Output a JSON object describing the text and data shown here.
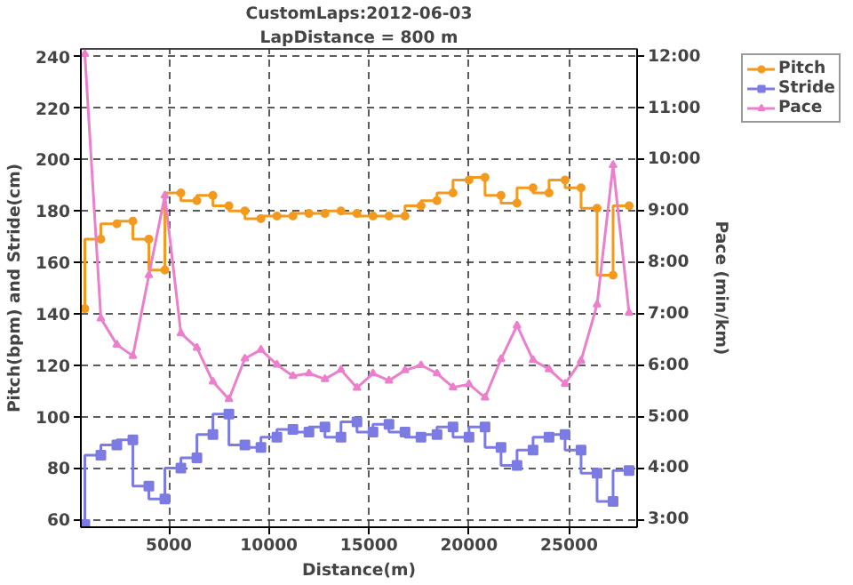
{
  "chart_data": {
    "type": "step",
    "title": "CustomLaps:2012-06-03",
    "subtitle": "LapDistance = 800 m",
    "xlabel": "Distance(m)",
    "ylabel": "Pitch(bpm) and Stride(cm)",
    "y2label": "Pace (min/km)",
    "x": [
      800,
      1600,
      2400,
      3200,
      4000,
      4800,
      5600,
      6400,
      7200,
      8000,
      8800,
      9600,
      10400,
      11200,
      12000,
      12800,
      13600,
      14400,
      15200,
      16000,
      16800,
      17600,
      18400,
      19200,
      20000,
      20800,
      21600,
      22400,
      23200,
      24000,
      24800,
      25600,
      26400,
      27200,
      28000
    ],
    "series": [
      {
        "name": "Pitch",
        "color": "#f39a1e",
        "marker": "circle",
        "values": [
          142,
          169,
          175,
          176,
          169,
          157,
          187,
          184,
          186,
          182,
          180,
          177,
          178,
          178,
          179,
          179,
          180,
          179,
          178,
          178,
          178,
          182,
          184,
          187,
          192,
          193,
          186,
          183,
          189,
          187,
          192,
          189,
          181,
          155,
          182
        ]
      },
      {
        "name": "Stride",
        "color": "#7b7be3",
        "marker": "square",
        "values": [
          58,
          85,
          89,
          91,
          73,
          68,
          80,
          84,
          93,
          101,
          89,
          88,
          92,
          95,
          94,
          96,
          92,
          98,
          94,
          97,
          94,
          92,
          93,
          96,
          92,
          96,
          88,
          81,
          87,
          92,
          93,
          87,
          78,
          67,
          79
        ]
      },
      {
        "name": "Pace",
        "color": "#ec7fcb",
        "marker": "triangle",
        "type": "line",
        "axis": "y2",
        "values": [
          12.05,
          6.91,
          6.4,
          6.18,
          7.75,
          9.3,
          6.62,
          6.34,
          5.68,
          5.34,
          6.13,
          6.3,
          6.01,
          5.79,
          5.84,
          5.73,
          5.91,
          5.56,
          5.84,
          5.7,
          5.9,
          6.0,
          5.84,
          5.57,
          5.63,
          5.37,
          6.12,
          6.77,
          6.1,
          5.92,
          5.64,
          6.09,
          7.18,
          9.89,
          7.02
        ]
      }
    ],
    "xlim": [
      600,
      28400
    ],
    "xticks": [
      5000,
      10000,
      15000,
      20000,
      25000
    ],
    "ylim": [
      57,
      243
    ],
    "yticks": [
      60,
      80,
      100,
      120,
      140,
      160,
      180,
      200,
      220,
      240
    ],
    "y2lim": [
      2.85,
      12.15
    ],
    "y2ticks": [
      {
        "value": 3,
        "label": "3:00"
      },
      {
        "value": 4,
        "label": "4:00"
      },
      {
        "value": 5,
        "label": "5:00"
      },
      {
        "value": 6,
        "label": "6:00"
      },
      {
        "value": 7,
        "label": "7:00"
      },
      {
        "value": 8,
        "label": "8:00"
      },
      {
        "value": 9,
        "label": "9:00"
      },
      {
        "value": 10,
        "label": "10:00"
      },
      {
        "value": 11,
        "label": "11:00"
      },
      {
        "value": 12,
        "label": "12:00"
      }
    ],
    "grid": true,
    "legend": "top right",
    "line_style": "solid"
  }
}
